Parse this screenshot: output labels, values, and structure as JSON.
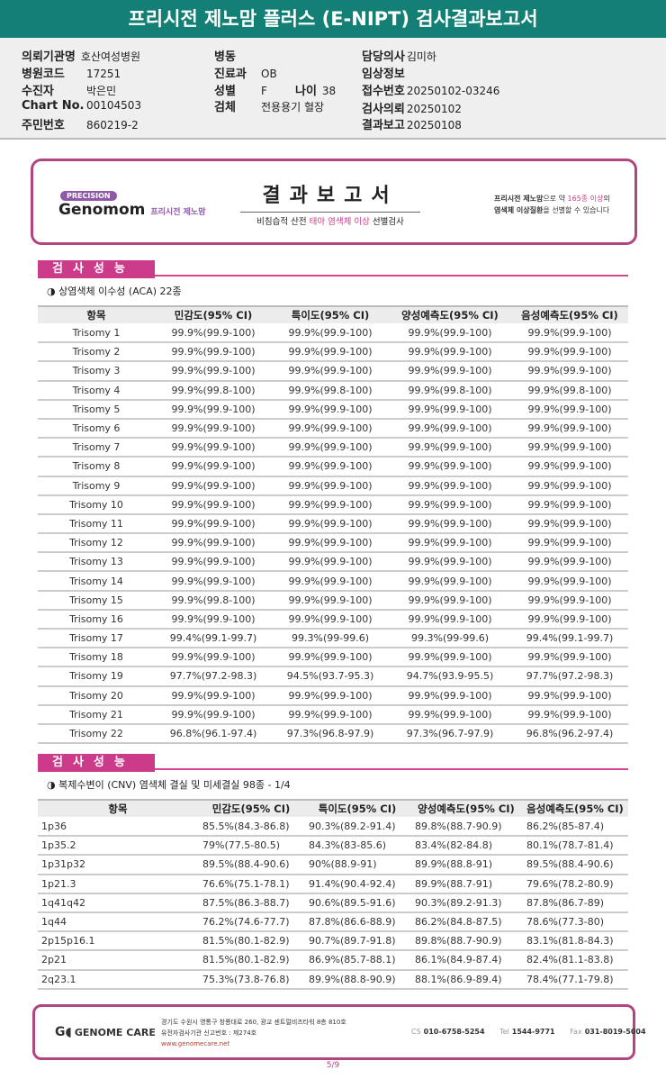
{
  "title": "프리시전 제노맘 플러스 (E-NIPT) 검사결과보고서",
  "info": {
    "hospital_label": "의뢰기관명",
    "hospital": "호산여성병원",
    "code_label": "병원코드",
    "code": "17251",
    "patient_label": "수진자",
    "patient": "박은민",
    "chart_label": "Chart No.",
    "chart": "00104503",
    "rrn_label": "주민번호",
    "rrn": "860219-2",
    "ward_label": "병동",
    "ward": "",
    "dept_label": "진료과",
    "dept": "OB",
    "sex_label": "성별",
    "sex": "F",
    "age_label": "나이",
    "age": "38",
    "specimen_label": "검체",
    "specimen": "전용용기 혈장",
    "doctor_label": "담당의사",
    "doctor": "김미하",
    "clinical_label": "임상정보",
    "clinical": "",
    "receipt_label": "접수번호",
    "receipt": "20250102-03246",
    "request_label": "검사의뢰",
    "request": "20250102",
    "report_label": "결과보고",
    "report": "20250108"
  },
  "banner": {
    "precision": "PRECISION",
    "brand": "Genomom",
    "brand_kr": "프리시전 제노맘",
    "title": "결과보고서",
    "sub_a": "비침습적 산전 ",
    "sub_b": "태아 염색체 이상",
    "sub_c": " 선별검사",
    "right_1a": "프리시전 제노맘",
    "right_1b": "으로 약 ",
    "right_1c": "165종 이상",
    "right_1d": "의",
    "right_2a": "염색체 이상질환",
    "right_2b": "을 선별할 수 있습니다"
  },
  "section1": {
    "header": "검사성능",
    "subtitle": "◑ 상염색체 이수성 (ACA) 22종"
  },
  "section2": {
    "header": "검사성능",
    "subtitle": "◑ 복제수변이 (CNV) 염색체 결실 및 미세결실 98종 - 1/4"
  },
  "columns": [
    "항목",
    "민감도(95% CI)",
    "특이도(95% CI)",
    "양성예측도(95% CI)",
    "음성예측도(95% CI)"
  ],
  "aca_rows": [
    [
      "Trisomy 1",
      "99.9%(99.9-100)",
      "99.9%(99.9-100)",
      "99.9%(99.9-100)",
      "99.9%(99.9-100)"
    ],
    [
      "Trisomy 2",
      "99.9%(99.9-100)",
      "99.9%(99.9-100)",
      "99.9%(99.9-100)",
      "99.9%(99.9-100)"
    ],
    [
      "Trisomy 3",
      "99.9%(99.9-100)",
      "99.9%(99.9-100)",
      "99.9%(99.9-100)",
      "99.9%(99.9-100)"
    ],
    [
      "Trisomy 4",
      "99.9%(99.8-100)",
      "99.9%(99.8-100)",
      "99.9%(99.8-100)",
      "99.9%(99.8-100)"
    ],
    [
      "Trisomy 5",
      "99.9%(99.9-100)",
      "99.9%(99.9-100)",
      "99.9%(99.9-100)",
      "99.9%(99.9-100)"
    ],
    [
      "Trisomy 6",
      "99.9%(99.9-100)",
      "99.9%(99.9-100)",
      "99.9%(99.9-100)",
      "99.9%(99.9-100)"
    ],
    [
      "Trisomy 7",
      "99.9%(99.9-100)",
      "99.9%(99.9-100)",
      "99.9%(99.9-100)",
      "99.9%(99.9-100)"
    ],
    [
      "Trisomy 8",
      "99.9%(99.9-100)",
      "99.9%(99.9-100)",
      "99.9%(99.9-100)",
      "99.9%(99.9-100)"
    ],
    [
      "Trisomy 9",
      "99.9%(99.9-100)",
      "99.9%(99.9-100)",
      "99.9%(99.9-100)",
      "99.9%(99.9-100)"
    ],
    [
      "Trisomy 10",
      "99.9%(99.9-100)",
      "99.9%(99.9-100)",
      "99.9%(99.9-100)",
      "99.9%(99.9-100)"
    ],
    [
      "Trisomy 11",
      "99.9%(99.9-100)",
      "99.9%(99.9-100)",
      "99.9%(99.9-100)",
      "99.9%(99.9-100)"
    ],
    [
      "Trisomy 12",
      "99.9%(99.9-100)",
      "99.9%(99.9-100)",
      "99.9%(99.9-100)",
      "99.9%(99.9-100)"
    ],
    [
      "Trisomy 13",
      "99.9%(99.9-100)",
      "99.9%(99.9-100)",
      "99.9%(99.9-100)",
      "99.9%(99.9-100)"
    ],
    [
      "Trisomy 14",
      "99.9%(99.9-100)",
      "99.9%(99.9-100)",
      "99.9%(99.9-100)",
      "99.9%(99.9-100)"
    ],
    [
      "Trisomy 15",
      "99.9%(99.8-100)",
      "99.9%(99.9-100)",
      "99.9%(99.9-100)",
      "99.9%(99.9-100)"
    ],
    [
      "Trisomy 16",
      "99.9%(99.9-100)",
      "99.9%(99.9-100)",
      "99.9%(99.9-100)",
      "99.9%(99.9-100)"
    ],
    [
      "Trisomy 17",
      "99.4%(99.1-99.7)",
      "99.3%(99-99.6)",
      "99.3%(99-99.6)",
      "99.4%(99.1-99.7)"
    ],
    [
      "Trisomy 18",
      "99.9%(99.9-100)",
      "99.9%(99.9-100)",
      "99.9%(99.9-100)",
      "99.9%(99.9-100)"
    ],
    [
      "Trisomy 19",
      "97.7%(97.2-98.3)",
      "94.5%(93.7-95.3)",
      "94.7%(93.9-95.5)",
      "97.7%(97.2-98.3)"
    ],
    [
      "Trisomy 20",
      "99.9%(99.9-100)",
      "99.9%(99.9-100)",
      "99.9%(99.9-100)",
      "99.9%(99.9-100)"
    ],
    [
      "Trisomy 21",
      "99.9%(99.9-100)",
      "99.9%(99.9-100)",
      "99.9%(99.9-100)",
      "99.9%(99.9-100)"
    ],
    [
      "Trisomy 22",
      "96.8%(96.1-97.4)",
      "97.3%(96.8-97.9)",
      "97.3%(96.7-97.9)",
      "96.8%(96.2-97.4)"
    ]
  ],
  "cnv_rows": [
    [
      "1p36",
      "85.5%(84.3-86.8)",
      "90.3%(89.2-91.4)",
      "89.8%(88.7-90.9)",
      "86.2%(85-87.4)"
    ],
    [
      "1p35.2",
      "79%(77.5-80.5)",
      "84.3%(83-85.6)",
      "83.4%(82-84.8)",
      "80.1%(78.7-81.4)"
    ],
    [
      "1p31p32",
      "89.5%(88.4-90.6)",
      "90%(88.9-91)",
      "89.9%(88.8-91)",
      "89.5%(88.4-90.6)"
    ],
    [
      "1p21.3",
      "76.6%(75.1-78.1)",
      "91.4%(90.4-92.4)",
      "89.9%(88.7-91)",
      "79.6%(78.2-80.9)"
    ],
    [
      "1q41q42",
      "87.5%(86.3-88.7)",
      "90.6%(89.5-91.6)",
      "90.3%(89.2-91.3)",
      "87.8%(86.7-89)"
    ],
    [
      "1q44",
      "76.2%(74.6-77.7)",
      "87.8%(86.6-88.9)",
      "86.2%(84.8-87.5)",
      "78.6%(77.3-80)"
    ],
    [
      "2p15p16.1",
      "81.5%(80.1-82.9)",
      "90.7%(89.7-91.8)",
      "89.8%(88.7-90.9)",
      "83.1%(81.8-84.3)"
    ],
    [
      "2p21",
      "81.5%(80.1-82.9)",
      "86.9%(85.7-88.1)",
      "86.1%(84.9-87.4)",
      "82.4%(81.1-83.8)"
    ],
    [
      "2q23.1",
      "75.3%(73.8-76.8)",
      "89.9%(88.8-90.9)",
      "88.1%(86.9-89.4)",
      "78.4%(77.1-79.8)"
    ]
  ],
  "footer": {
    "logo": "GENOME CARE",
    "address": "경기도 수원시 영통구 창룡대로 260, 광교 센트럴비즈타워 8층 810호",
    "registration": "유전자검사기관 신고번호 : 제274호",
    "website": "www.genomecare.net",
    "cs_label": "CS",
    "cs": "010-6758-5254",
    "tel_label": "Tel",
    "tel": "1544-9771",
    "fax_label": "Fax",
    "fax": "031-8019-5004"
  },
  "page": "5/9",
  "colors": {
    "titlebar": "#137f75",
    "accent": "#cc3a8a",
    "border": "#b0457f"
  }
}
